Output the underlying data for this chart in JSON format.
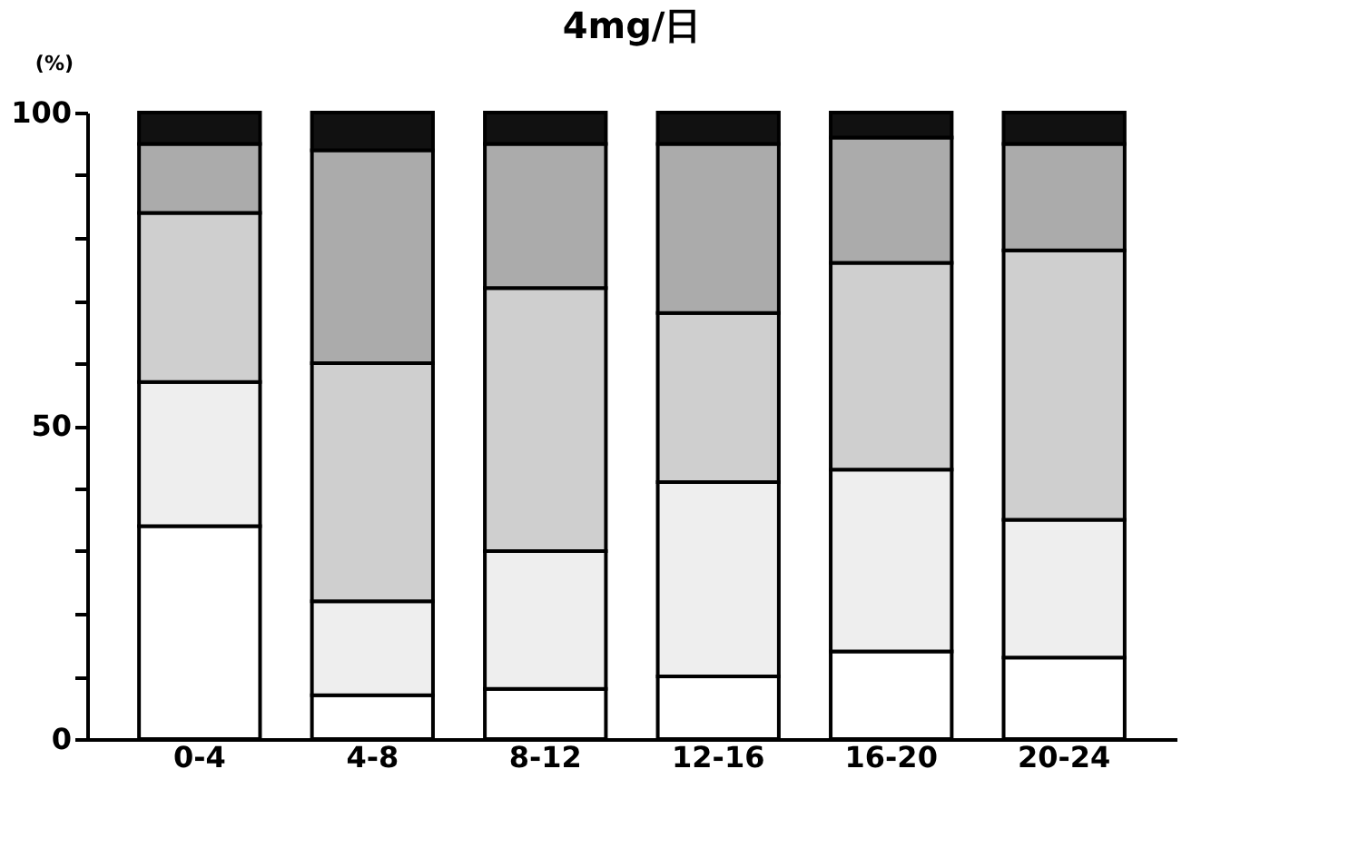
{
  "chart_data": {
    "type": "bar",
    "title": "4mg/日",
    "ylabel": "(%)",
    "stacked": true,
    "categories": [
      "0-4",
      "4-8",
      "8-12",
      "12-16",
      "16-20",
      "20-24"
    ],
    "series": [
      {
        "color": "#ffffff",
        "values": [
          34,
          7,
          8,
          10,
          14,
          13
        ]
      },
      {
        "color": "#eeeeee",
        "values": [
          23,
          15,
          22,
          31,
          29,
          22
        ]
      },
      {
        "color": "#cfcfcf",
        "values": [
          27,
          38,
          42,
          27,
          33,
          43
        ]
      },
      {
        "color": "#ababab",
        "values": [
          11,
          34,
          23,
          27,
          20,
          17
        ]
      },
      {
        "color": "#111111",
        "values": [
          5,
          6,
          5,
          5,
          4,
          5
        ]
      }
    ],
    "ylim": [
      0,
      100
    ],
    "yticks": [
      0,
      {
        "value": 10,
        "label": null
      },
      {
        "value": 20,
        "label": null
      },
      {
        "value": 30,
        "label": null
      },
      {
        "value": 40,
        "label": null
      },
      50,
      {
        "value": 60,
        "label": null
      },
      {
        "value": 70,
        "label": null
      },
      {
        "value": 80,
        "label": null
      },
      {
        "value": 90,
        "label": null
      },
      100
    ],
    "grid": false
  }
}
